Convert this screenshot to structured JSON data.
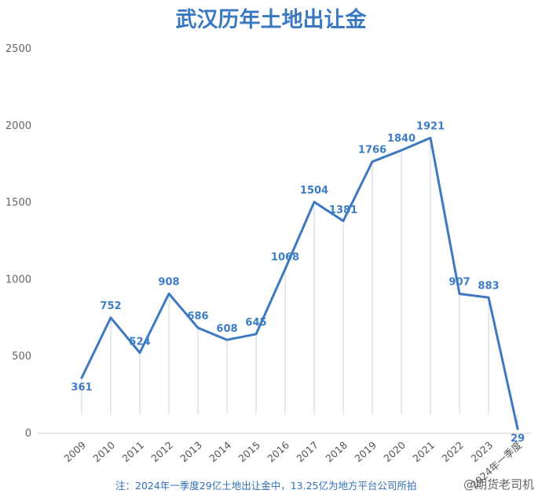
{
  "chart_data": {
    "type": "line",
    "title": "武汉历年土地出让金",
    "categories": [
      "2009",
      "2010",
      "2011",
      "2012",
      "2013",
      "2014",
      "2015",
      "2016",
      "2017",
      "2018",
      "2019",
      "2020",
      "2021",
      "2022",
      "2023",
      "2024年一季度"
    ],
    "series": [
      {
        "values": [
          361,
          752,
          524,
          908,
          686,
          608,
          645,
          1068,
          1504,
          1381,
          1766,
          1840,
          1921,
          907,
          883,
          29
        ]
      }
    ],
    "ylim": [
      0,
      2500
    ],
    "yticks": [
      0,
      500,
      1000,
      1500,
      2000,
      2500
    ],
    "grid": false,
    "line_color": "#3d78c0",
    "note": "注：2024年一季度29亿土地出让金中，13.25亿为地方平台公司所拍",
    "watermark": "@期货老司机"
  }
}
